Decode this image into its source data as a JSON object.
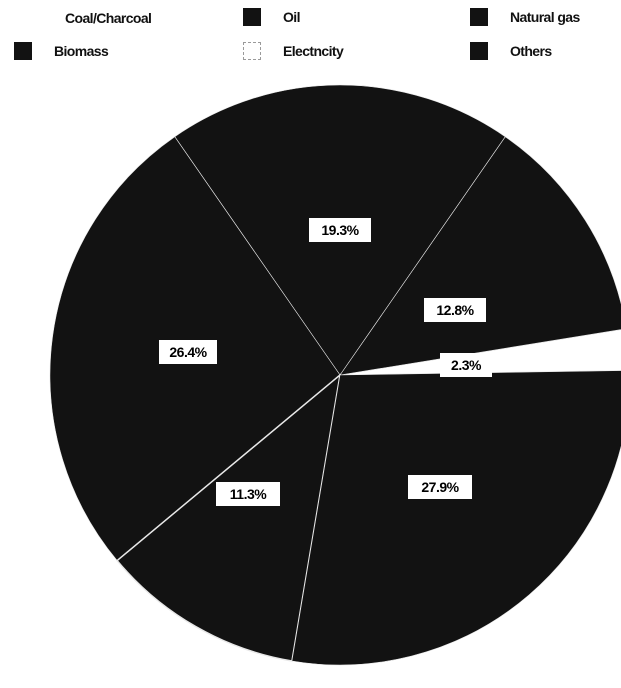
{
  "chart_data": {
    "type": "pie",
    "categories": [
      "Coal/Charcoal",
      "Oil",
      "Natural gas",
      "Biomass",
      "Electricity",
      "Others"
    ],
    "legend_labels": [
      "Coal/Charcoal",
      "Oil",
      "Natural gas",
      "Biomass",
      "Electncity",
      "Others"
    ],
    "values": [
      19.3,
      12.8,
      2.3,
      27.9,
      11.3,
      26.4
    ],
    "slice_labels": [
      "19.3%",
      "12.8%",
      "2.3%",
      "27.9%",
      "11.3%",
      "26.4%"
    ],
    "legend_position": "top",
    "colors": {
      "slice": "#121212",
      "electricity": "#ffffff",
      "separator": "#e8e8e8",
      "label_box": "#ffffff"
    }
  }
}
